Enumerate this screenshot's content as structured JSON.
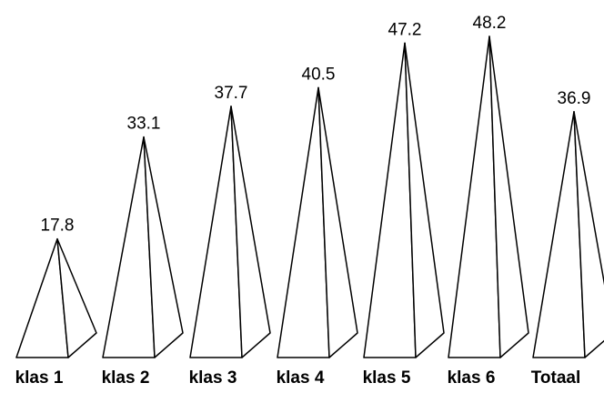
{
  "chart_data": {
    "type": "bar",
    "style": "pyramid",
    "categories": [
      "klas 1",
      "klas 2",
      "klas 3",
      "klas 4",
      "klas 5",
      "klas 6",
      "Totaal"
    ],
    "values": [
      17.8,
      33.1,
      37.7,
      40.5,
      47.2,
      48.2,
      36.9
    ],
    "value_labels": [
      "17.8",
      "33.1",
      "37.7",
      "40.5",
      "47.2",
      "48.2",
      "36.9"
    ],
    "ylim": [
      0,
      48.2
    ],
    "grid": false,
    "legend": "none",
    "colors": {
      "fill": "#ffffff",
      "stroke": "#000000"
    }
  }
}
